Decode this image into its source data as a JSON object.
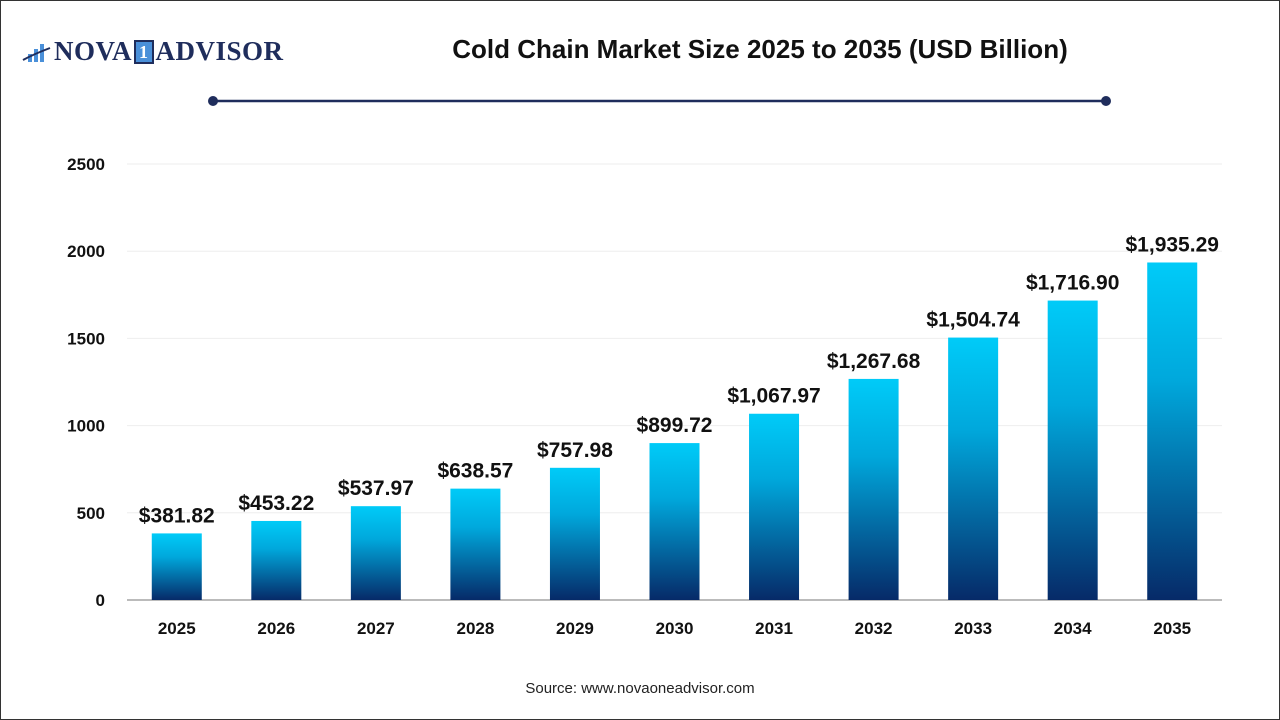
{
  "header": {
    "logo_text_left": "NOVA",
    "logo_text_mid": "1",
    "logo_text_right": "ADVISOR"
  },
  "footer": {
    "source": "Source: www.novaoneadvisor.com"
  },
  "colors": {
    "bar_top": "#00cbf8",
    "bar_bottom": "#062a68",
    "title_line": "#1f2d5c"
  },
  "chart_data": {
    "type": "bar",
    "title": "Cold Chain Market Size 2025 to 2035 (USD Billion)",
    "xlabel": "",
    "ylabel": "",
    "categories": [
      "2025",
      "2026",
      "2027",
      "2028",
      "2029",
      "2030",
      "2031",
      "2032",
      "2033",
      "2034",
      "2035"
    ],
    "values": [
      381.82,
      453.22,
      537.97,
      638.57,
      757.98,
      899.72,
      1067.97,
      1267.68,
      1504.74,
      1716.9,
      1935.29
    ],
    "data_labels": [
      "$381.82",
      "$453.22",
      "$537.97",
      "$638.57",
      "$757.98",
      "$899.72",
      "$1,067.97",
      "$1,267.68",
      "$1,504.74",
      "$1,716.90",
      "$1,935.29"
    ],
    "ylim": [
      0,
      2500
    ],
    "yticks": [
      0,
      500,
      1000,
      1500,
      2000,
      2500
    ],
    "grid": true,
    "legend": "none"
  }
}
